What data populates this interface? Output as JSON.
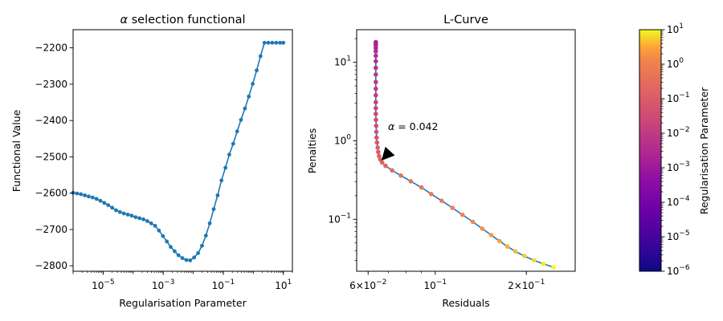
{
  "colors": {
    "line": "#1f77b4",
    "axis": "#000000"
  },
  "chart_data": [
    {
      "type": "line",
      "title": "α selection functional",
      "title_parts": [
        "α",
        " selection functional"
      ],
      "xlabel": "Regularisation Parameter",
      "ylabel": "Functional Value",
      "xscale": "log",
      "xlim": [
        1e-06,
        20
      ],
      "ylim": [
        -2815,
        -2150
      ],
      "x_ticks": [
        1e-05,
        0.001,
        0.1,
        10
      ],
      "x_tick_labels": [
        [
          "10",
          "−5"
        ],
        [
          "10",
          "−3"
        ],
        [
          "10",
          "−1"
        ],
        [
          "10",
          "1"
        ]
      ],
      "y_ticks": [
        -2800,
        -2700,
        -2600,
        -2500,
        -2400,
        -2300,
        -2200
      ],
      "y_tick_labels": [
        "−2800",
        "−2700",
        "−2600",
        "−2500",
        "−2400",
        "−2300",
        "−2200"
      ],
      "log_alpha": [
        -6,
        -5.87,
        -5.74,
        -5.61,
        -5.48,
        -5.35,
        -5.22,
        -5.09,
        -4.96,
        -4.83,
        -4.7,
        -4.57,
        -4.44,
        -4.31,
        -4.18,
        -4.05,
        -3.92,
        -3.79,
        -3.66,
        -3.53,
        -3.4,
        -3.27,
        -3.14,
        -3.01,
        -2.88,
        -2.75,
        -2.62,
        -2.49,
        -2.36,
        -2.23,
        -2.1,
        -1.97,
        -1.84,
        -1.71,
        -1.58,
        -1.45,
        -1.32,
        -1.19,
        -1.06,
        -0.93,
        -0.8,
        -0.67,
        -0.54,
        -0.41,
        -0.28,
        -0.15,
        -0.02,
        0.11,
        0.24,
        0.37,
        0.5,
        0.63,
        0.76,
        0.89,
        1.0
      ],
      "values": [
        -2599,
        -2601,
        -2603,
        -2606,
        -2609,
        -2612,
        -2616,
        -2621,
        -2627,
        -2633,
        -2640,
        -2647,
        -2652,
        -2656,
        -2659,
        -2662,
        -2666,
        -2669,
        -2672,
        -2677,
        -2683,
        -2690,
        -2703,
        -2718,
        -2733,
        -2748,
        -2760,
        -2771,
        -2779,
        -2784,
        -2785,
        -2777,
        -2765,
        -2745,
        -2717,
        -2683,
        -2644,
        -2606,
        -2565,
        -2530,
        -2494,
        -2464,
        -2430,
        -2398,
        -2367,
        -2334,
        -2299,
        -2262,
        -2223,
        -2186,
        -2186,
        -2186,
        -2186,
        -2186,
        -2186
      ],
      "grid": false
    },
    {
      "type": "scatter",
      "title": "L-Curve",
      "xlabel": "Residuals",
      "ylabel": "Penalties",
      "xscale": "log",
      "yscale": "log",
      "xlim": [
        0.055,
        0.29
      ],
      "ylim": [
        0.0218,
        26
      ],
      "x_ticks": [
        0.06,
        0.1,
        0.2
      ],
      "x_tick_labels": [
        [
          "6",
          "×",
          "10",
          "−2"
        ],
        [
          "10",
          "−1"
        ],
        [
          "2",
          "×",
          "10",
          "−1"
        ]
      ],
      "y_ticks": [
        0.1,
        1,
        10
      ],
      "y_tick_labels": [
        [
          "10",
          "−1"
        ],
        [
          "10",
          "0"
        ],
        [
          "10",
          "1"
        ]
      ],
      "points": [
        [
          0.0636,
          18
        ],
        [
          0.0636,
          17.3
        ],
        [
          0.0636,
          16.4
        ],
        [
          0.0636,
          15.2
        ],
        [
          0.0636,
          13.8
        ],
        [
          0.0636,
          12.1
        ],
        [
          0.0636,
          10.3
        ],
        [
          0.0636,
          8.5
        ],
        [
          0.0636,
          7.0
        ],
        [
          0.0636,
          5.6
        ],
        [
          0.0636,
          4.6
        ],
        [
          0.0636,
          3.8
        ],
        [
          0.0636,
          3.1
        ],
        [
          0.0636,
          2.6
        ],
        [
          0.0636,
          2.2
        ],
        [
          0.0637,
          1.85
        ],
        [
          0.0638,
          1.55
        ],
        [
          0.0639,
          1.3
        ],
        [
          0.064,
          1.1
        ],
        [
          0.0642,
          0.95
        ],
        [
          0.0645,
          0.82
        ],
        [
          0.0648,
          0.72
        ],
        [
          0.0652,
          0.64
        ],
        [
          0.0658,
          0.58
        ],
        [
          0.0667,
          0.53
        ],
        [
          0.0685,
          0.48
        ],
        [
          0.072,
          0.42
        ],
        [
          0.077,
          0.36
        ],
        [
          0.083,
          0.305
        ],
        [
          0.09,
          0.255
        ],
        [
          0.097,
          0.21
        ],
        [
          0.105,
          0.172
        ],
        [
          0.114,
          0.14
        ],
        [
          0.123,
          0.114
        ],
        [
          0.133,
          0.093
        ],
        [
          0.143,
          0.076
        ],
        [
          0.153,
          0.063
        ],
        [
          0.163,
          0.053
        ],
        [
          0.173,
          0.045
        ],
        [
          0.184,
          0.039
        ],
        [
          0.197,
          0.034
        ],
        [
          0.212,
          0.03
        ],
        [
          0.228,
          0.027
        ],
        [
          0.246,
          0.0245
        ]
      ],
      "annotation": {
        "prefix": "α",
        "text": " =  0.042",
        "x": 0.0664,
        "y": 0.56,
        "arrow": true
      },
      "colormap": "plasma",
      "grid": false
    },
    {
      "type": "colorbar",
      "label": "Regularisation Parameter",
      "range": [
        1e-06,
        10
      ],
      "scale": "log",
      "ticks": [
        1e-06,
        1e-05,
        0.0001,
        0.001,
        0.01,
        0.1,
        1,
        10
      ],
      "tick_labels": [
        [
          "10",
          "−6"
        ],
        [
          "10",
          "−5"
        ],
        [
          "10",
          "−4"
        ],
        [
          "10",
          "−3"
        ],
        [
          "10",
          "−2"
        ],
        [
          "10",
          "−1"
        ],
        [
          "10",
          "0"
        ],
        [
          "10",
          "1"
        ]
      ],
      "colormap": "plasma"
    }
  ]
}
